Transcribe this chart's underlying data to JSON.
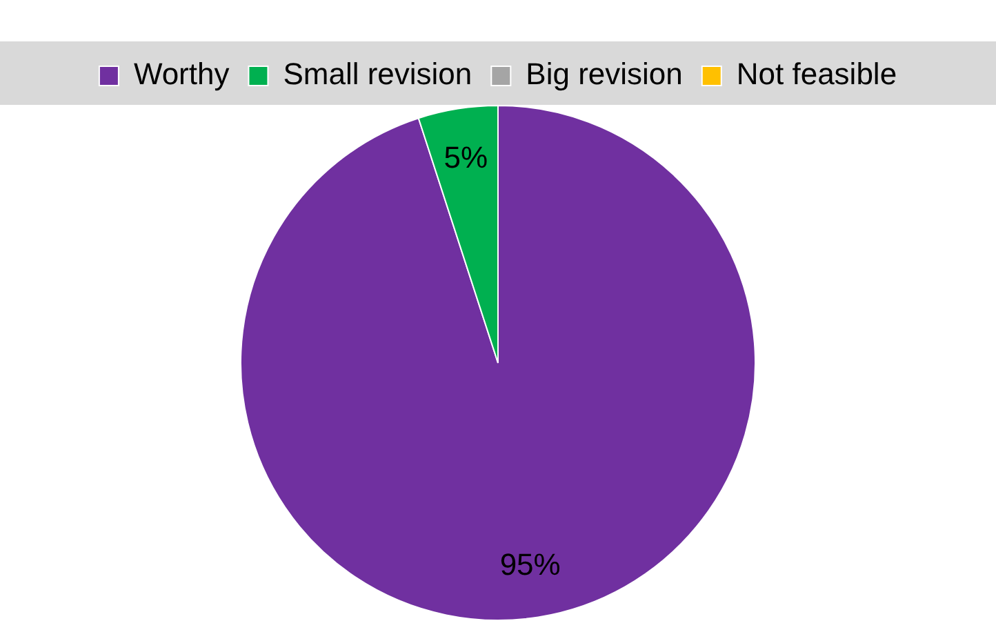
{
  "chart_data": {
    "type": "pie",
    "categories": [
      "Worthy",
      "Small revision",
      "Big revision",
      "Not feasible"
    ],
    "values": [
      95,
      5,
      0,
      0
    ],
    "colors": [
      "#7030a0",
      "#00b050",
      "#a5a5a5",
      "#ffc000"
    ],
    "value_labels": [
      "95%",
      "5%",
      null,
      null
    ],
    "legend": "top"
  }
}
